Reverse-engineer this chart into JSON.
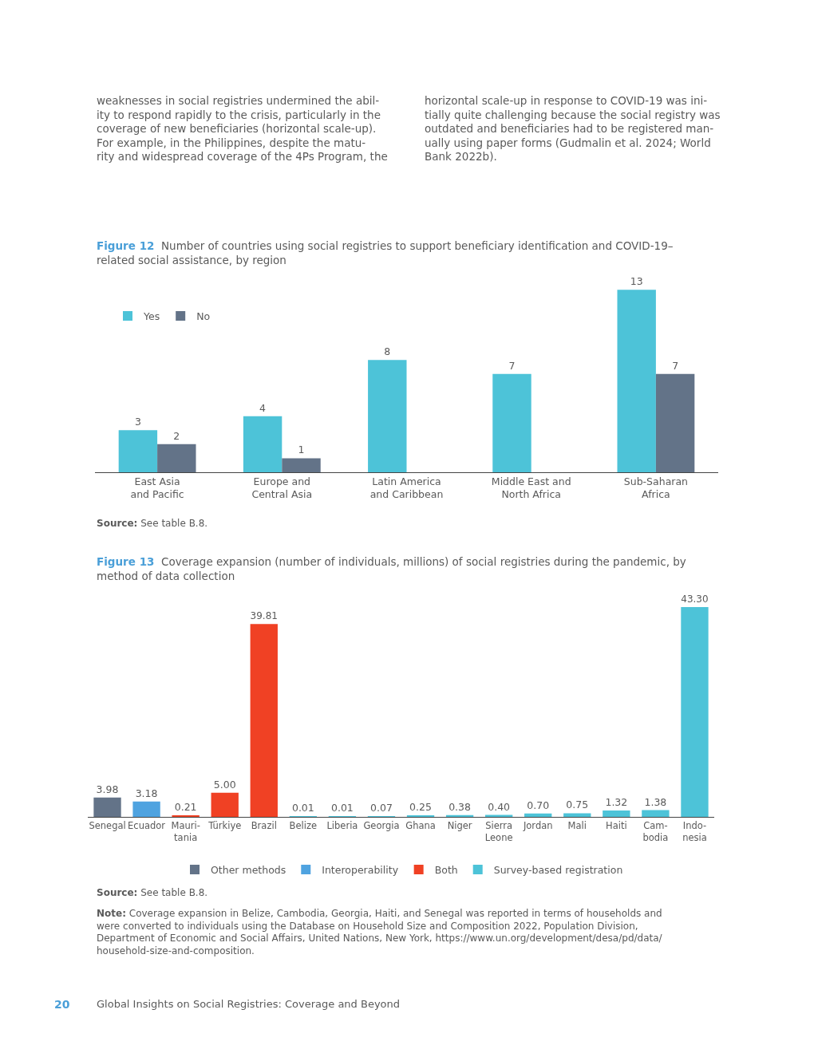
{
  "chart_data": [
    {
      "type": "other",
      "annotations": [
        "weaknesses in social registries undermined the abil-\nity to respond rapidly to the crisis, particularly in the\ncoverage of new beneficiaries (horizontal scale-up).\nFor example, in the Philippines, despite the matu-\nrity and widespread coverage of the 4Ps Program, the",
        "horizontal scale-up in response to COVID-19 was ini-\ntially quite challenging because the social registry was\noutdated and beneficiaries had to be registered man-\nually using paper forms (Gudmalin et al. 2024; World\nBank 2022b)."
      ]
    },
    {
      "type": "bar",
      "title": "Figure 12",
      "subtitle": "Number of countries using social registries to support beneficiary identification and COVID-19–\nrelated social assistance, by region",
      "categories": [
        "East Asia\nand Pacific",
        "Europe and\nCentral Asia",
        "Latin America\nand Caribbean",
        "Middle East and\nNorth Africa",
        "Sub-Saharan\nAfrica"
      ],
      "series": [
        {
          "name": "Yes",
          "color": "#4dc3d8",
          "values": [
            3,
            4,
            8,
            7,
            13
          ]
        },
        {
          "name": "No",
          "color": "#637388",
          "values": [
            2,
            1,
            null,
            null,
            7
          ]
        }
      ],
      "data_labels": true,
      "legend": "top left",
      "annotations": [
        "Source: See table B.8."
      ]
    },
    {
      "type": "bar",
      "title": "Figure 13",
      "subtitle": "Coverage expansion (number of individuals, millions) of social registries during the pandemic, by\nmethod of data collection",
      "categories": [
        "Senegal",
        "Ecuador",
        "Mauri-\ntania",
        "Türkiye",
        "Brazil",
        "Belize",
        "Liberia",
        "Georgia",
        "Ghana",
        "Niger",
        "Sierra\nLeone",
        "Jordan",
        "Mali",
        "Haiti",
        "Cam-\nbodia",
        "Indo-\nnesia"
      ],
      "series": [
        {
          "name": "Other methods",
          "color": "#637388",
          "values": [
            3.98,
            null,
            null,
            null,
            null,
            null,
            null,
            null,
            null,
            null,
            null,
            null,
            null,
            null,
            null,
            null
          ],
          "value_labels": [
            "3.98",
            null,
            null,
            null,
            null,
            null,
            null,
            null,
            null,
            null,
            null,
            null,
            null,
            null,
            null,
            null
          ]
        },
        {
          "name": "Interoperability",
          "color": "#4fa3e0",
          "values": [
            null,
            3.18,
            null,
            null,
            null,
            null,
            null,
            null,
            null,
            null,
            null,
            null,
            null,
            null,
            null,
            null
          ],
          "value_labels": [
            null,
            "3.18",
            null,
            null,
            null,
            null,
            null,
            null,
            null,
            null,
            null,
            null,
            null,
            null,
            null,
            null
          ]
        },
        {
          "name": "Both",
          "color": "#f04124",
          "values": [
            null,
            null,
            0.21,
            5.0,
            39.81,
            null,
            null,
            null,
            null,
            null,
            null,
            null,
            null,
            null,
            null,
            null
          ],
          "value_labels": [
            null,
            null,
            "0.21",
            "5.00",
            "39.81",
            null,
            null,
            null,
            null,
            null,
            null,
            null,
            null,
            null,
            null,
            null
          ]
        },
        {
          "name": "Survey-based registration",
          "color": "#4dc3d8",
          "values": [
            null,
            null,
            null,
            null,
            null,
            0.01,
            0.01,
            0.07,
            0.25,
            0.38,
            0.4,
            0.7,
            0.75,
            1.32,
            1.38,
            43.3
          ],
          "value_labels": [
            null,
            null,
            null,
            null,
            null,
            "0.01",
            "0.01",
            "0.07",
            "0.25",
            "0.38",
            "0.40",
            "0.70",
            "0.75",
            "1.32",
            "1.38",
            "43.30"
          ]
        }
      ],
      "legend": "bottom",
      "annotations": [
        "Source: See table B.8.",
        "Note: Coverage expansion in Belize, Cambodia, Georgia, Haiti, and Senegal was reported in terms of households and\nwere converted to individuals using the Database on Household Size and Composition 2022, Population Division,\nDepartment of Economic and Social Affairs, United Nations, New York, https://www.un.org/development/desa/pd/data/\nhousehold-size-and-composition."
      ]
    },
    {
      "type": "other",
      "annotations": [
        "20",
        "Global Insights on Social Registries: Coverage and Beyond"
      ]
    }
  ]
}
